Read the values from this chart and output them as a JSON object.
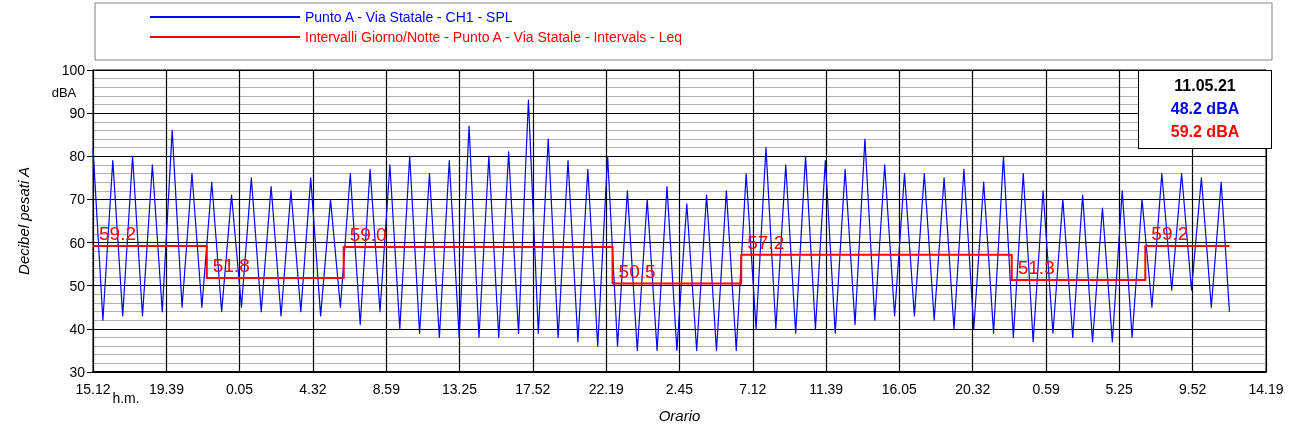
{
  "chart_data": {
    "type": "line",
    "xlabel": "Orario",
    "ylabel": "Decibel pesati A",
    "annotations": [
      "dBA",
      "h.m.",
      "11.05.21",
      "48.2 dBA",
      "59.2 dBA"
    ],
    "xlim": [
      "--05-08T15:12",
      "--05-11T14:19"
    ],
    "xticks": [
      {
        "value": "--05-08T15:12",
        "label": "15.12"
      },
      {
        "value": "--05-08T19:39",
        "label": "19.39"
      },
      {
        "value": "--05-09T00:05",
        "label": "0.05"
      },
      {
        "value": "--05-09T04:32",
        "label": "4.32"
      },
      {
        "value": "--05-09T08:59",
        "label": "8.59"
      },
      {
        "value": "--05-09T13:25",
        "label": "13.25"
      },
      {
        "value": "--05-09T17:52",
        "label": "17.52"
      },
      {
        "value": "--05-09T22:19",
        "label": "22.19"
      },
      {
        "value": "--05-10T02:45",
        "label": "2.45"
      },
      {
        "value": "--05-10T07:12",
        "label": "7.12"
      },
      {
        "value": "--05-10T11:39",
        "label": "11.39"
      },
      {
        "value": "--05-10T16:05",
        "label": "16.05"
      },
      {
        "value": "--05-10T20:32",
        "label": "20.32"
      },
      {
        "value": "--05-11T00:59",
        "label": "0.59"
      },
      {
        "value": "--05-11T05:25",
        "label": "5.25"
      },
      {
        "value": "--05-11T09:52",
        "label": "9.52"
      },
      {
        "value": "--05-11T14:19",
        "label": "14.19"
      }
    ],
    "ylim": [
      30,
      100
    ],
    "yticks": [
      30,
      40,
      50,
      60,
      70,
      80,
      90,
      100
    ],
    "grid": true,
    "legend": "top",
    "marker": "none",
    "series": [
      {
        "name": "Punto A - Via Statale - CH1 - SPL",
        "color": "#0000ff",
        "x": [
          "--05-08T15:12",
          "--05-08T15:48",
          "--05-08T16:24",
          "--05-08T17:00",
          "--05-08T17:36",
          "--05-08T18:12",
          "--05-08T18:48",
          "--05-08T19:24",
          "--05-08T20:00",
          "--05-08T20:36",
          "--05-08T21:12",
          "--05-08T21:48",
          "--05-08T22:24",
          "--05-08T23:00",
          "--05-08T23:36",
          "--05-09T00:12",
          "--05-09T00:48",
          "--05-09T01:24",
          "--05-09T02:00",
          "--05-09T02:36",
          "--05-09T03:12",
          "--05-09T03:48",
          "--05-09T04:24",
          "--05-09T05:00",
          "--05-09T05:36",
          "--05-09T06:12",
          "--05-09T06:48",
          "--05-09T07:24",
          "--05-09T08:00",
          "--05-09T08:36",
          "--05-09T09:12",
          "--05-09T09:48",
          "--05-09T10:24",
          "--05-09T11:00",
          "--05-09T11:36",
          "--05-09T12:12",
          "--05-09T12:48",
          "--05-09T13:24",
          "--05-09T14:00",
          "--05-09T14:36",
          "--05-09T15:12",
          "--05-09T15:48",
          "--05-09T16:24",
          "--05-09T17:00",
          "--05-09T17:36",
          "--05-09T18:12",
          "--05-09T18:48",
          "--05-09T19:24",
          "--05-09T20:00",
          "--05-09T20:36",
          "--05-09T21:12",
          "--05-09T21:48",
          "--05-09T22:24",
          "--05-09T23:00",
          "--05-09T23:36",
          "--05-10T00:12",
          "--05-10T00:48",
          "--05-10T01:24",
          "--05-10T02:00",
          "--05-10T02:36",
          "--05-10T03:12",
          "--05-10T03:48",
          "--05-10T04:24",
          "--05-10T05:00",
          "--05-10T05:36",
          "--05-10T06:12",
          "--05-10T06:48",
          "--05-10T07:24",
          "--05-10T08:00",
          "--05-10T08:36",
          "--05-10T09:12",
          "--05-10T09:48",
          "--05-10T10:24",
          "--05-10T11:00",
          "--05-10T11:36",
          "--05-10T12:12",
          "--05-10T12:48",
          "--05-10T13:24",
          "--05-10T14:00",
          "--05-10T14:36",
          "--05-10T15:12",
          "--05-10T15:48",
          "--05-10T16:24",
          "--05-10T17:00",
          "--05-10T17:36",
          "--05-10T18:12",
          "--05-10T18:48",
          "--05-10T19:24",
          "--05-10T20:00",
          "--05-10T20:36",
          "--05-10T21:12",
          "--05-10T21:48",
          "--05-10T22:24",
          "--05-10T23:00",
          "--05-10T23:36",
          "--05-11T00:12",
          "--05-11T00:48",
          "--05-11T01:24",
          "--05-11T02:00",
          "--05-11T02:36",
          "--05-11T03:12",
          "--05-11T03:48",
          "--05-11T04:24",
          "--05-11T05:00",
          "--05-11T05:36",
          "--05-11T06:12",
          "--05-11T06:48",
          "--05-11T07:24",
          "--05-11T08:00",
          "--05-11T08:36",
          "--05-11T09:12",
          "--05-11T09:48",
          "--05-11T10:24",
          "--05-11T11:00",
          "--05-11T11:36",
          "--05-11T12:06"
        ],
        "values": [
          82,
          42,
          79,
          43,
          80,
          43,
          78,
          44,
          86,
          45,
          76,
          45,
          74,
          44,
          71,
          45,
          75,
          44,
          73,
          43,
          72,
          44,
          75,
          43,
          70,
          45,
          76,
          41,
          77,
          44,
          78,
          40,
          80,
          39,
          76,
          38,
          79,
          38,
          87,
          38,
          80,
          38,
          81,
          39,
          93,
          39,
          84,
          38,
          79,
          37,
          77,
          36,
          80,
          36,
          72,
          35,
          70,
          35,
          73,
          35,
          69,
          35,
          71,
          35,
          72,
          35,
          76,
          40,
          82,
          40,
          78,
          39,
          80,
          40,
          79,
          39,
          77,
          41,
          84,
          42,
          78,
          43,
          76,
          43,
          76,
          42,
          75,
          40,
          77,
          40,
          74,
          39,
          80,
          38,
          76,
          37,
          72,
          39,
          70,
          38,
          71,
          37,
          68,
          37,
          72,
          38,
          70,
          45,
          76,
          49,
          76,
          49,
          75,
          45,
          74,
          44
        ]
      },
      {
        "name": "Intervalli Giorno/Notte - Punto A - Via Statale - Intervals - Leq",
        "color": "#ff0000",
        "type": "step",
        "x": [
          "--05-08T15:12",
          "--05-08T22:06",
          "--05-09T06:24",
          "--05-09T22:42",
          "--05-10T06:30",
          "--05-10T22:54",
          "--05-11T07:00",
          "--05-11T12:06"
        ],
        "values": [
          59.2,
          51.8,
          59.0,
          50.5,
          57.2,
          51.3,
          59.2,
          59.2
        ],
        "value_labels": [
          "59.2",
          "51.8",
          "59.0",
          "50.5",
          "57.2",
          "51.3",
          "59.2",
          null
        ]
      }
    ]
  }
}
